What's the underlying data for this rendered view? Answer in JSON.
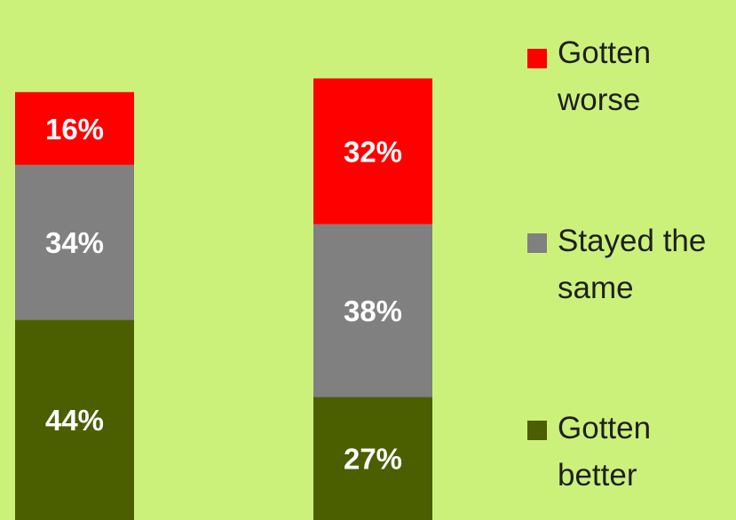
{
  "chart_data": {
    "type": "bar",
    "stacked": true,
    "orientation": "vertical",
    "categories": [
      "",
      ""
    ],
    "ylim": [
      0,
      100
    ],
    "grid": false,
    "legend_position": "right",
    "series": [
      {
        "name": "Gotten better",
        "color": "#4b5e00",
        "values": [
          44,
          27
        ],
        "labels": [
          "44%",
          "27%"
        ]
      },
      {
        "name": "Stayed the same",
        "color": "#808080",
        "values": [
          34,
          38
        ],
        "labels": [
          "34%",
          "38%"
        ]
      },
      {
        "name": "Gotten worse",
        "color": "#ff0000",
        "values": [
          16,
          32
        ],
        "labels": [
          "16%",
          "32%"
        ]
      }
    ]
  },
  "legend": {
    "items": [
      {
        "label": "Gotten\nworse",
        "color": "#ff0000",
        "icon": "red-square-swatch"
      },
      {
        "label": "Stayed the\nsame",
        "color": "#808080",
        "icon": "gray-square-swatch"
      },
      {
        "label": "Gotten\nbetter",
        "color": "#4b5e00",
        "icon": "olive-square-swatch"
      }
    ]
  }
}
